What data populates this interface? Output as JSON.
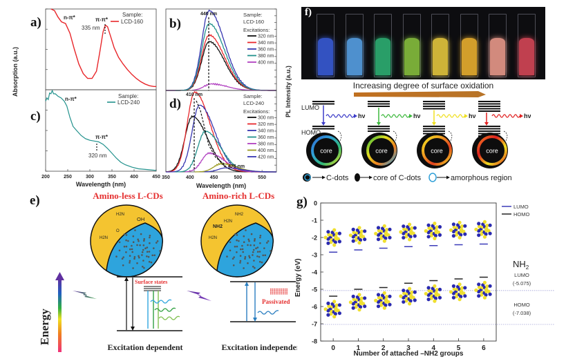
{
  "panels": {
    "a": {
      "label": "a)",
      "sample_title": "Sample:",
      "sample": "LCD-160",
      "annot_npi": "n-π*",
      "annot_pipi": "π-π*",
      "peak": "335 nm"
    },
    "b": {
      "label": "b)",
      "sample_title": "Sample:",
      "sample": "LCD-160",
      "excitations_title": "Excitations:",
      "peak": "440 nm"
    },
    "c": {
      "label": "c)",
      "sample_title": "Sample:",
      "sample": "LCD-240",
      "annot_npi": "n-π*",
      "annot_pipi": "π-π*",
      "peak": "320 nm"
    },
    "d": {
      "label": "d)",
      "sample_title": "Sample:",
      "sample": "LCD-240",
      "excitations_title": "Excitations:",
      "peak_start": "410 nm",
      "peak_end": "475 nm"
    },
    "e": {
      "label": "e)",
      "left_title": "Amino-less L-CDs",
      "right_title": "Amino-rich L-CDs",
      "left_groups": [
        "H2N",
        "OH",
        "O",
        "H2N",
        "O",
        "O"
      ],
      "right_groups": [
        "NH2",
        "H2N",
        "H2N",
        "NH2",
        "O",
        "O",
        "OH",
        "H2N",
        "NH2"
      ],
      "energy_label": "Energy",
      "surface_states": "Surface states",
      "passivated": "Passivated",
      "left_caption": "Excitation dependent",
      "right_caption": "Excitation independent"
    },
    "f": {
      "label": "f)",
      "vial_colors": [
        "#3a5fe0",
        "#5aa8f0",
        "#2fb878",
        "#8cc840",
        "#f0d040",
        "#f5b830",
        "#f5a090",
        "#e04a5a"
      ],
      "arrow_caption": "Increasing degree of surface oxidation",
      "lumo": "LUMO",
      "homo": "HOMO",
      "hv": "hν",
      "core": "core",
      "emission_colors": [
        "#3b3bc8",
        "#3cb83c",
        "#f0e020",
        "#e02020"
      ],
      "legend": [
        "C-dots",
        "core of C-dots",
        "amorphous region"
      ]
    },
    "g": {
      "label": "g)",
      "legend": [
        {
          "name": "LUMO",
          "color": "#3b3bb8"
        },
        {
          "name": "HOMO",
          "color": "#222222"
        }
      ],
      "nh2_title": "NH2",
      "ref_lumo_label": "LUMO",
      "ref_lumo_value": "(-5.075)",
      "ref_homo_label": "HOMO",
      "ref_homo_value": "(-7.038)"
    }
  },
  "chart_data": [
    {
      "id": "a",
      "type": "line",
      "title": "",
      "xlabel": "Wavelength (nm)",
      "ylabel": "Absorption (a.u.)",
      "xlim": [
        200,
        450
      ],
      "ylim": [
        0,
        1
      ],
      "series": [
        {
          "name": "LCD-160",
          "color": "#e8262a",
          "x": [
            212,
            220,
            228,
            236,
            245,
            255,
            265,
            275,
            285,
            295,
            305,
            315,
            322,
            330,
            335,
            340,
            347,
            355,
            365,
            375,
            385,
            395,
            405,
            415,
            425,
            435,
            445,
            450
          ],
          "y": [
            1.05,
            0.98,
            0.9,
            0.84,
            0.82,
            0.7,
            0.5,
            0.32,
            0.2,
            0.14,
            0.14,
            0.23,
            0.45,
            0.72,
            0.8,
            0.78,
            0.66,
            0.52,
            0.4,
            0.32,
            0.25,
            0.19,
            0.14,
            0.1,
            0.07,
            0.05,
            0.04,
            0.04
          ]
        }
      ]
    },
    {
      "id": "c",
      "type": "line",
      "title": "",
      "xlabel": "Wavelength (nm)",
      "ylabel": "Absorption (a.u.)",
      "xticks": [
        200,
        250,
        300,
        350,
        400,
        450
      ],
      "xlim": [
        200,
        450
      ],
      "ylim": [
        0,
        1
      ],
      "series": [
        {
          "name": "LCD-240",
          "color": "#21918c",
          "x": [
            200,
            203,
            206,
            209,
            212,
            215,
            218,
            222,
            228,
            235,
            242,
            248,
            255,
            262,
            270,
            280,
            290,
            300,
            310,
            320,
            330,
            340,
            350,
            360,
            370,
            380,
            395,
            410,
            430,
            450
          ],
          "y": [
            0.86,
            0.9,
            0.88,
            0.96,
            0.95,
            0.99,
            0.95,
            0.95,
            0.92,
            0.9,
            0.86,
            0.8,
            0.66,
            0.55,
            0.5,
            0.44,
            0.4,
            0.38,
            0.37,
            0.36,
            0.33,
            0.28,
            0.22,
            0.16,
            0.11,
            0.08,
            0.05,
            0.03,
            0.02,
            0.01
          ]
        }
      ]
    },
    {
      "id": "b",
      "type": "line",
      "xlabel": "Wavelength (nm)",
      "ylabel": "PL Intensity (a.u.)",
      "xlim": [
        350,
        580
      ],
      "ylim": [
        0,
        1
      ],
      "legend_title": "Excitations:",
      "series": [
        {
          "name": "320 nm",
          "color": "#111111",
          "peak": 440,
          "amp": 0.6,
          "start": 350
        },
        {
          "name": "340 nm",
          "color": "#e8262a",
          "peak": 440,
          "amp": 0.68,
          "start": 350
        },
        {
          "name": "360 nm",
          "color": "#3535b0",
          "peak": 440,
          "amp": 0.98,
          "start": 350
        },
        {
          "name": "380 nm",
          "color": "#21918c",
          "peak": 440,
          "amp": 0.82,
          "start": 370
        },
        {
          "name": "400 nm",
          "color": "#b040c0",
          "peak": 445,
          "amp": 0.08,
          "start": 405
        }
      ]
    },
    {
      "id": "d",
      "type": "line",
      "xlabel": "Wavelength (nm)",
      "ylabel": "PL Intensity (a.u.)",
      "xticks": [
        350,
        400,
        450,
        500,
        550
      ],
      "xlim": [
        350,
        580
      ],
      "ylim": [
        0,
        1
      ],
      "legend_title": "Excitations:",
      "series": [
        {
          "name": "300 nm",
          "color": "#111111",
          "peak": 405,
          "amp": 0.68,
          "start": 350
        },
        {
          "name": "320 nm",
          "color": "#e8262a",
          "peak": 410,
          "amp": 0.98,
          "start": 350
        },
        {
          "name": "340 nm",
          "color": "#3535b0",
          "peak": 420,
          "amp": 0.82,
          "start": 350
        },
        {
          "name": "360 nm",
          "color": "#21918c",
          "peak": 432,
          "amp": 0.5,
          "start": 370
        },
        {
          "name": "380 nm",
          "color": "#b040c0",
          "peak": 440,
          "amp": 0.23,
          "start": 390
        },
        {
          "name": "400 nm",
          "color": "#9a9a20",
          "peak": 465,
          "amp": 0.1,
          "start": 410
        },
        {
          "name": "420 nm",
          "color": "#3535b0",
          "peak": 475,
          "amp": 0.05,
          "start": 430
        }
      ]
    },
    {
      "id": "g",
      "type": "scatter",
      "xlabel": "Number of attached –NH2 groups",
      "ylabel": "Energy (eV)",
      "x": [
        0,
        1,
        2,
        3,
        4,
        5,
        6
      ],
      "xticks": [
        0,
        1,
        2,
        3,
        4,
        5,
        6
      ],
      "yticks": [
        0,
        -1,
        -2,
        -3,
        -4,
        -5,
        -6,
        -7,
        -8
      ],
      "xlim": [
        -0.5,
        6.5
      ],
      "ylim": [
        -8,
        0
      ],
      "series": [
        {
          "name": "LUMO",
          "color": "#3b3bb8",
          "values": [
            -2.85,
            -2.72,
            -2.62,
            -2.53,
            -2.47,
            -2.42,
            -2.38
          ]
        },
        {
          "name": "HOMO",
          "color": "#222222",
          "values": [
            -5.4,
            -5.0,
            -4.9,
            -4.65,
            -4.5,
            -4.4,
            -4.3
          ]
        }
      ],
      "reference_lines": [
        {
          "label": "LUMO (-5.075)",
          "value": -5.075
        },
        {
          "label": "HOMO (-7.038)",
          "value": -7.038
        }
      ],
      "grid": false,
      "legend_position": "top-right"
    }
  ]
}
